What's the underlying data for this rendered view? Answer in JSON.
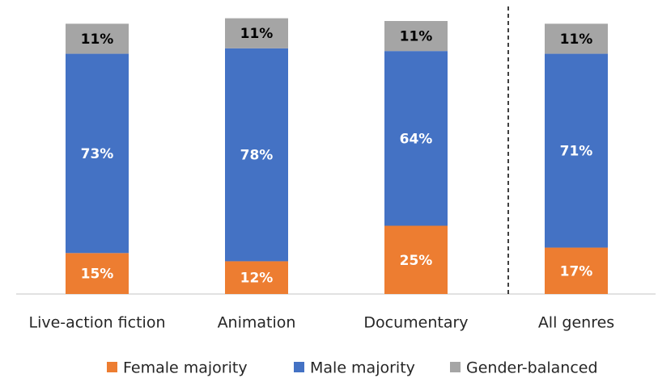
{
  "chart_data": {
    "type": "stacked_bar",
    "categories": [
      "Live-action fiction",
      "Animation",
      "Documentary",
      "All genres"
    ],
    "series": [
      {
        "name": "Female majority",
        "color": "#ed7d31",
        "values": [
          15,
          12,
          25,
          17
        ],
        "value_labels": [
          "15%",
          "12%",
          "25%",
          "17%"
        ],
        "label_color": "#ffffff"
      },
      {
        "name": "Male majority",
        "color": "#4472c4",
        "values": [
          73,
          78,
          64,
          71
        ],
        "value_labels": [
          "73%",
          "78%",
          "64%",
          "71%"
        ],
        "label_color": "#ffffff"
      },
      {
        "name": "Gender-balanced",
        "color": "#a5a5a5",
        "values": [
          11,
          11,
          11,
          11
        ],
        "value_labels": [
          "11%",
          "11%",
          "11%",
          "11%"
        ],
        "label_color": "#000000"
      }
    ],
    "legend": "bottom"
  }
}
